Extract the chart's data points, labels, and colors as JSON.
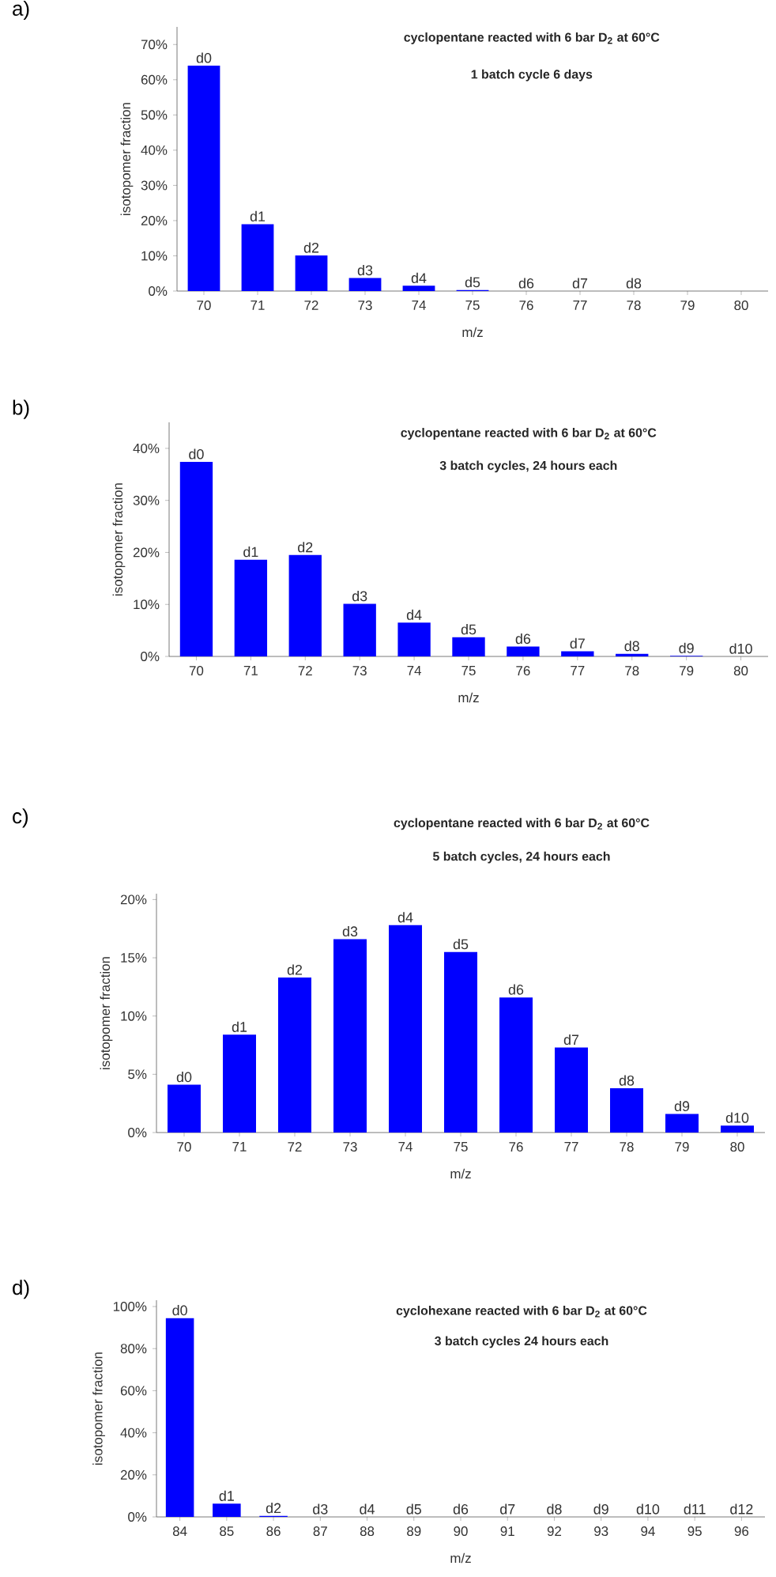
{
  "chart_data": [
    {
      "type": "bar",
      "title": "cyclopentane reacted with 6 bar D$_{2}$ at 60°C",
      "subtitle": "1 batch cycle 6 days",
      "xlabel": "m/z",
      "ylabel": "isotopomer fraction",
      "annotations": [
        "a)"
      ],
      "categories": [
        "70",
        "71",
        "72",
        "73",
        "74",
        "75",
        "76",
        "77",
        "78",
        "79",
        "80"
      ],
      "values": [
        64,
        19,
        10.1,
        3.7,
        1.5,
        0.3,
        0,
        0,
        0,
        0,
        0
      ],
      "value_labels": [
        "d0",
        "d1",
        "d2",
        "d3",
        "d4",
        "d5",
        "d6",
        "d7",
        "d8",
        null,
        null
      ],
      "color": "#0000ff",
      "ylim": [
        0,
        75
      ],
      "yticks": [
        {
          "value": 0,
          "label": "0%"
        },
        {
          "value": 10,
          "label": "10%"
        },
        {
          "value": 20,
          "label": "20%"
        },
        {
          "value": 30,
          "label": "30%"
        },
        {
          "value": 40,
          "label": "40%"
        },
        {
          "value": 50,
          "label": "50%"
        },
        {
          "value": 60,
          "label": "60%"
        },
        {
          "value": 70,
          "label": "70%"
        }
      ]
    },
    {
      "type": "bar",
      "title": "cyclopentane reacted with 6 bar D$_{2}$ at 60°C",
      "subtitle": "3 batch cycles, 24 hours each",
      "xlabel": "m/z",
      "ylabel": "isotopomer fraction",
      "annotations": [
        "b)"
      ],
      "categories": [
        "70",
        "71",
        "72",
        "73",
        "74",
        "75",
        "76",
        "77",
        "78",
        "79",
        "80"
      ],
      "values": [
        37.4,
        18.6,
        19.5,
        10.1,
        6.5,
        3.7,
        1.9,
        1.0,
        0.5,
        0.1,
        0
      ],
      "value_labels": [
        "d0",
        "d1",
        "d2",
        "d3",
        "d4",
        "d5",
        "d6",
        "d7",
        "d8",
        "d9",
        "d10"
      ],
      "color": "#0000ff",
      "ylim": [
        0,
        45
      ],
      "yticks": [
        {
          "value": 0,
          "label": "0%"
        },
        {
          "value": 10,
          "label": "10%"
        },
        {
          "value": 20,
          "label": "20%"
        },
        {
          "value": 30,
          "label": "30%"
        },
        {
          "value": 40,
          "label": "40%"
        }
      ]
    },
    {
      "type": "bar",
      "title": "cyclopentane reacted with 6 bar D$_{2}$ at 60°C",
      "subtitle": "5 batch cycles, 24 hours each",
      "xlabel": "m/z",
      "ylabel": "isotopomer fraction",
      "annotations": [
        "c)"
      ],
      "categories": [
        "70",
        "71",
        "72",
        "73",
        "74",
        "75",
        "76",
        "77",
        "78",
        "79",
        "80"
      ],
      "values": [
        4.1,
        8.4,
        13.3,
        16.6,
        17.8,
        15.5,
        11.6,
        7.3,
        3.8,
        1.6,
        0.6
      ],
      "value_labels": [
        "d0",
        "d1",
        "d2",
        "d3",
        "d4",
        "d5",
        "d6",
        "d7",
        "d8",
        "d9",
        "d10"
      ],
      "color": "#0000ff",
      "ylim": [
        0,
        20.5
      ],
      "yticks": [
        {
          "value": 0,
          "label": "0%"
        },
        {
          "value": 5,
          "label": "5%"
        },
        {
          "value": 10,
          "label": "10%"
        },
        {
          "value": 15,
          "label": "15%"
        },
        {
          "value": 20,
          "label": "20%"
        }
      ]
    },
    {
      "type": "bar",
      "title": "cyclohexane reacted with 6 bar D$_{2}$ at 60°C",
      "subtitle": "3 batch cycles 24 hours each",
      "xlabel": "m/z",
      "ylabel": "isotopomer fraction",
      "annotations": [
        "d)"
      ],
      "categories": [
        "84",
        "85",
        "86",
        "87",
        "88",
        "89",
        "90",
        "91",
        "92",
        "93",
        "94",
        "95",
        "96"
      ],
      "values": [
        94.5,
        6.3,
        0.5,
        0,
        0,
        0,
        0,
        0,
        0,
        0,
        0,
        0,
        0
      ],
      "value_labels": [
        "d0",
        "d1",
        "d2",
        "d3",
        "d4",
        "d5",
        "d6",
        "d7",
        "d8",
        "d9",
        "d10",
        "d11",
        "d12"
      ],
      "color": "#0000ff",
      "ylim": [
        0,
        103
      ],
      "yticks": [
        {
          "value": 0,
          "label": "0%"
        },
        {
          "value": 20,
          "label": "20%"
        },
        {
          "value": 40,
          "label": "40%"
        },
        {
          "value": 60,
          "label": "60%"
        },
        {
          "value": 80,
          "label": "80%"
        },
        {
          "value": 100,
          "label": "100%"
        }
      ]
    }
  ]
}
